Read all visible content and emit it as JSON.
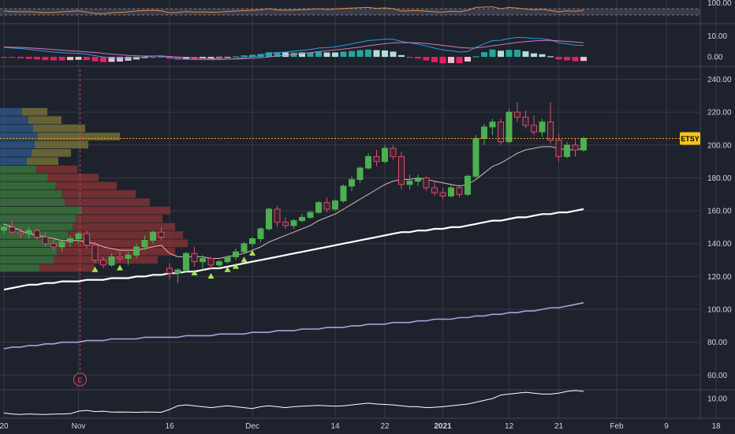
{
  "chart_data": {
    "type": "candlestick",
    "symbol": "ETSY",
    "colors": {
      "background": "#1e222d",
      "grid": "#363a45",
      "up": "#26a69a",
      "up_candle": "#4caf50",
      "down_candle": "#e04a6a",
      "ma_fast": "#e0b7c0",
      "ma_mid": "#ffffff",
      "ma_slow": "#b39ddb",
      "price_line": "#f5a623",
      "badge_bg": "#f5c518",
      "badge_fg": "#000000",
      "rsi": "#e88a3c",
      "macd": "#2b9cf0",
      "signal": "#d27ab0"
    },
    "x_axis": {
      "labels": [
        "20",
        "Nov",
        "16",
        "Dec",
        "14",
        "22",
        "2021",
        "12",
        "21",
        "Feb",
        "9",
        "18"
      ],
      "bold_labels": [
        "2021"
      ],
      "label_index": [
        0,
        9,
        20,
        30,
        40,
        46,
        53,
        61,
        67,
        74,
        80,
        86
      ]
    },
    "price_axis": {
      "ticks": [
        60,
        80,
        100,
        120,
        140,
        160,
        180,
        200,
        220,
        240
      ],
      "tick_labels": [
        "60.00",
        "80.00",
        "100.00",
        "120.00",
        "140.00",
        "160.00",
        "180.00",
        "200.00",
        "220.00",
        "240.00"
      ],
      "range": [
        52,
        246
      ],
      "last_price": 204,
      "badge_label": "ETSY"
    },
    "rsi_panel": {
      "tick_labels": [
        "100.00"
      ],
      "range": [
        0,
        100
      ]
    },
    "macd_panel": {
      "tick_labels": [
        "10.00",
        "0.00"
      ],
      "range": [
        -3,
        14
      ]
    },
    "volume_panel": {
      "tick_labels": [
        "10.00"
      ],
      "range": [
        0,
        14
      ]
    },
    "earnings_marker": {
      "label": "E",
      "index": 9
    },
    "candles": [
      [
        148,
        152,
        146,
        150
      ],
      [
        150,
        154,
        146,
        147
      ],
      [
        147,
        150,
        143,
        146
      ],
      [
        146,
        150,
        143,
        148
      ],
      [
        148,
        149,
        142,
        144
      ],
      [
        144,
        147,
        138,
        140
      ],
      [
        140,
        143,
        136,
        138
      ],
      [
        138,
        142,
        135,
        141
      ],
      [
        141,
        145,
        138,
        143
      ],
      [
        143,
        147,
        140,
        146
      ],
      [
        146,
        148,
        137,
        139
      ],
      [
        139,
        141,
        128,
        130
      ],
      [
        130,
        132,
        125,
        127
      ],
      [
        127,
        134,
        126,
        132
      ],
      [
        132,
        136,
        129,
        131
      ],
      [
        131,
        135,
        127,
        133
      ],
      [
        133,
        140,
        131,
        138
      ],
      [
        138,
        145,
        136,
        142
      ],
      [
        142,
        148,
        140,
        147
      ],
      [
        147,
        150,
        142,
        144
      ],
      [
        125,
        128,
        118,
        122
      ],
      [
        122,
        125,
        116,
        124
      ],
      [
        124,
        135,
        122,
        134
      ],
      [
        134,
        138,
        126,
        129
      ],
      [
        129,
        133,
        124,
        131
      ],
      [
        131,
        132,
        124,
        127
      ],
      [
        127,
        130,
        125,
        129
      ],
      [
        129,
        133,
        128,
        132
      ],
      [
        132,
        137,
        130,
        135
      ],
      [
        135,
        141,
        134,
        140
      ],
      [
        140,
        144,
        138,
        143
      ],
      [
        143,
        150,
        141,
        149
      ],
      [
        149,
        162,
        148,
        161
      ],
      [
        161,
        163,
        150,
        153
      ],
      [
        153,
        156,
        149,
        151
      ],
      [
        151,
        155,
        149,
        154
      ],
      [
        154,
        158,
        153,
        156
      ],
      [
        156,
        160,
        155,
        159
      ],
      [
        159,
        166,
        158,
        165
      ],
      [
        165,
        168,
        159,
        161
      ],
      [
        161,
        167,
        160,
        166
      ],
      [
        166,
        176,
        165,
        175
      ],
      [
        175,
        181,
        172,
        179
      ],
      [
        179,
        187,
        177,
        186
      ],
      [
        186,
        195,
        185,
        193
      ],
      [
        193,
        197,
        187,
        190
      ],
      [
        190,
        200,
        189,
        198
      ],
      [
        198,
        200,
        191,
        193
      ],
      [
        193,
        196,
        173,
        176
      ],
      [
        176,
        182,
        173,
        178
      ],
      [
        178,
        182,
        175,
        180
      ],
      [
        180,
        181,
        172,
        174
      ],
      [
        174,
        178,
        169,
        171
      ],
      [
        171,
        174,
        167,
        169
      ],
      [
        169,
        176,
        168,
        174
      ],
      [
        174,
        176,
        168,
        170
      ],
      [
        170,
        182,
        169,
        181
      ],
      [
        181,
        206,
        180,
        204
      ],
      [
        204,
        213,
        200,
        211
      ],
      [
        211,
        216,
        206,
        214
      ],
      [
        214,
        216,
        200,
        202
      ],
      [
        202,
        222,
        201,
        220
      ],
      [
        220,
        226,
        214,
        217
      ],
      [
        217,
        221,
        210,
        212
      ],
      [
        212,
        218,
        206,
        208
      ],
      [
        208,
        216,
        205,
        214
      ],
      [
        214,
        226,
        201,
        203
      ],
      [
        203,
        207,
        190,
        193
      ],
      [
        193,
        202,
        192,
        200
      ],
      [
        200,
        204,
        193,
        197
      ],
      [
        197,
        205,
        196,
        204
      ]
    ],
    "ma_fast": [
      152,
      150,
      148,
      146,
      145,
      144,
      143,
      142,
      142,
      142,
      141,
      140,
      138,
      137,
      136,
      136,
      136,
      137,
      138,
      139,
      134,
      132,
      132,
      132,
      132,
      131,
      131,
      132,
      133,
      134,
      136,
      138,
      141,
      143,
      145,
      147,
      149,
      151,
      154,
      156,
      158,
      161,
      164,
      167,
      170,
      173,
      176,
      178,
      179,
      179,
      180,
      179,
      178,
      177,
      176,
      175,
      176,
      179,
      183,
      187,
      189,
      192,
      195,
      197,
      198,
      199,
      199,
      198,
      197,
      197,
      198
    ],
    "ma_mid": [
      112,
      113,
      114,
      115,
      115,
      116,
      116,
      117,
      117,
      117,
      118,
      118,
      118,
      119,
      119,
      119,
      120,
      120,
      121,
      121,
      122,
      122,
      123,
      123,
      124,
      125,
      125,
      126,
      127,
      128,
      129,
      130,
      131,
      132,
      133,
      134,
      135,
      136,
      137,
      138,
      139,
      140,
      141,
      142,
      143,
      144,
      145,
      146,
      147,
      147,
      148,
      148,
      149,
      149,
      150,
      150,
      151,
      152,
      153,
      154,
      154,
      155,
      156,
      156,
      157,
      158,
      158,
      159,
      159,
      160,
      161
    ],
    "ma_slow": [
      76,
      77,
      77,
      78,
      78,
      79,
      79,
      80,
      80,
      80,
      81,
      81,
      81,
      82,
      82,
      82,
      82,
      83,
      83,
      83,
      83,
      83,
      84,
      84,
      84,
      84,
      85,
      85,
      85,
      85,
      86,
      86,
      86,
      87,
      87,
      87,
      88,
      88,
      88,
      89,
      89,
      89,
      90,
      90,
      91,
      91,
      91,
      92,
      92,
      92,
      93,
      93,
      94,
      94,
      94,
      95,
      95,
      96,
      96,
      97,
      97,
      98,
      98,
      99,
      99,
      100,
      101,
      101,
      102,
      103,
      104
    ],
    "rsi": [
      55,
      52,
      50,
      51,
      48,
      45,
      47,
      50,
      53,
      56,
      48,
      40,
      38,
      45,
      47,
      50,
      55,
      58,
      60,
      56,
      44,
      46,
      52,
      48,
      50,
      47,
      49,
      52,
      55,
      58,
      60,
      63,
      70,
      62,
      60,
      62,
      64,
      66,
      70,
      65,
      68,
      72,
      74,
      76,
      78,
      72,
      75,
      70,
      55,
      57,
      58,
      54,
      50,
      48,
      54,
      50,
      60,
      78,
      80,
      82,
      70,
      78,
      74,
      68,
      64,
      67,
      58,
      50,
      56,
      53,
      60
    ],
    "macd": [
      4.5,
      4.3,
      4,
      3.6,
      3.2,
      2.7,
      2.3,
      2,
      1.8,
      1.7,
      1.3,
      0.6,
      -0.1,
      -0.4,
      -0.6,
      -0.6,
      -0.4,
      0,
      0.4,
      0.5,
      -0.4,
      -1,
      -1.1,
      -1.3,
      -1.3,
      -1.4,
      -1.3,
      -1.1,
      -0.8,
      -0.4,
      0,
      0.6,
      1.6,
      2,
      2.3,
      2.7,
      3.1,
      3.5,
      4.2,
      4.4,
      4.8,
      5.5,
      6.2,
      7,
      7.8,
      8.1,
      8.5,
      8.5,
      7.4,
      6.7,
      6.1,
      5.2,
      4.2,
      3.3,
      2.9,
      2.3,
      2.6,
      4.5,
      6.3,
      7.8,
      7.9,
      8.8,
      9.3,
      9.2,
      8.8,
      8.7,
      8.1,
      6.8,
      6.2,
      5.6,
      5.4
    ],
    "signal": [
      4.7,
      4.6,
      4.5,
      4.3,
      4.1,
      3.8,
      3.5,
      3.2,
      2.9,
      2.7,
      2.4,
      2.1,
      1.7,
      1.3,
      1,
      0.7,
      0.5,
      0.4,
      0.4,
      0.4,
      0.2,
      -0.1,
      -0.3,
      -0.5,
      -0.7,
      -0.9,
      -1,
      -1,
      -1,
      -0.9,
      -0.7,
      -0.4,
      0,
      0.4,
      0.8,
      1.2,
      1.6,
      2,
      2.5,
      2.9,
      3.3,
      3.7,
      4.2,
      4.7,
      5.3,
      5.8,
      6.3,
      6.7,
      6.8,
      6.8,
      6.7,
      6.4,
      6,
      5.5,
      5,
      4.5,
      4.2,
      4.3,
      4.7,
      5.3,
      5.8,
      6.4,
      6.9,
      7.3,
      7.6,
      7.8,
      7.9,
      7.7,
      7.4,
      7.1,
      6.8
    ],
    "volume": [
      2,
      1.5,
      1.2,
      1.5,
      1.3,
      1.2,
      1.4,
      1.5,
      1.6,
      3,
      3.5,
      2.8,
      3,
      2.5,
      2.6,
      2.5,
      2.4,
      2.6,
      2.5,
      2.4,
      4,
      6,
      6.5,
      6,
      5.5,
      5,
      5.5,
      6,
      5.5,
      5,
      4.5,
      5.5,
      6,
      5.5,
      5,
      5.5,
      5.8,
      6,
      6.2,
      6,
      5.8,
      6,
      6.5,
      7,
      7.5,
      7,
      6.8,
      6.5,
      6,
      5.5,
      5.5,
      5,
      5.2,
      5.5,
      6,
      6.5,
      7,
      8,
      9,
      10,
      12,
      12.5,
      13,
      13.5,
      13,
      12.5,
      12.5,
      13,
      14,
      14.5,
      14
    ],
    "volume_profile": [
      {
        "price": 220,
        "buy": 28,
        "sell": 60
      },
      {
        "price": 215,
        "buy": 36,
        "sell": 78
      },
      {
        "price": 210,
        "buy": 42,
        "sell": 108
      },
      {
        "price": 205,
        "buy": 48,
        "sell": 152
      },
      {
        "price": 200,
        "buy": 44,
        "sell": 112
      },
      {
        "price": 195,
        "buy": 40,
        "sell": 90
      },
      {
        "price": 190,
        "buy": 34,
        "sell": 74
      },
      {
        "price": 185,
        "buy": 46,
        "sell": 98
      },
      {
        "price": 180,
        "buy": 60,
        "sell": 125
      },
      {
        "price": 175,
        "buy": 70,
        "sell": 148
      },
      {
        "price": 170,
        "buy": 78,
        "sell": 172
      },
      {
        "price": 165,
        "buy": 82,
        "sell": 190
      },
      {
        "price": 160,
        "buy": 104,
        "sell": 216
      },
      {
        "price": 155,
        "buy": 96,
        "sell": 206
      },
      {
        "price": 150,
        "buy": 92,
        "sell": 222
      },
      {
        "price": 145,
        "buy": 86,
        "sell": 232
      },
      {
        "price": 140,
        "buy": 80,
        "sell": 238
      },
      {
        "price": 135,
        "buy": 72,
        "sell": 222
      },
      {
        "price": 130,
        "buy": 68,
        "sell": 200
      },
      {
        "price": 125,
        "buy": 50,
        "sell": 120
      }
    ],
    "signal_markers": [
      11,
      14,
      23,
      25,
      27,
      28,
      29,
      30
    ]
  }
}
